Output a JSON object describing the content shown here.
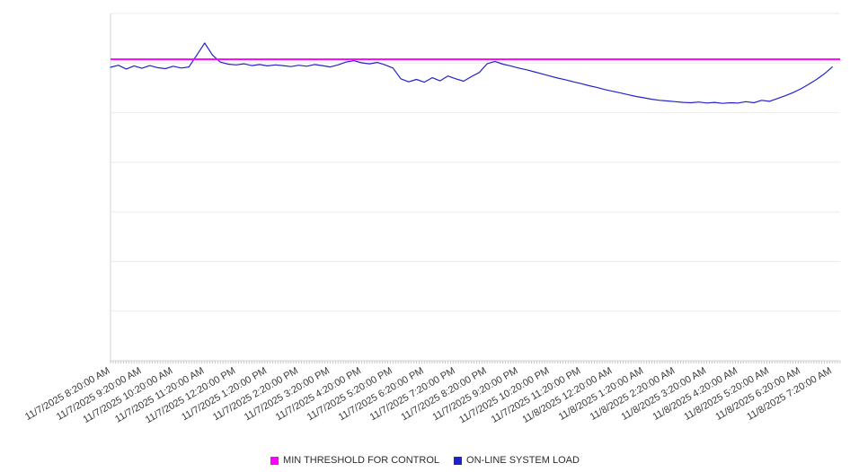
{
  "chart_data": {
    "type": "line",
    "title": "",
    "xlabel": "",
    "ylabel": "",
    "grid": true,
    "legend_position": "bottom",
    "ylim": [
      0,
      100
    ],
    "y_gridline_count": 7,
    "x_span_hours": 23.25,
    "x_step_hours": 0.25,
    "minor_tick_hours": 0.0833333,
    "colors": {
      "grid": "#ebebee",
      "axis": "#d6d6da",
      "tick": "#c4c4c8",
      "label": "#383838",
      "background": "#ffffff"
    },
    "x_tick_labels": [
      "11/7/2025 8:20:00 AM",
      "11/7/2025 9:20:00 AM",
      "11/7/2025 10:20:00 AM",
      "11/7/2025 11:20:00 AM",
      "11/7/2025 12:20:00 PM",
      "11/7/2025 1:20:00 PM",
      "11/7/2025 2:20:00 PM",
      "11/7/2025 3:20:00 PM",
      "11/7/2025 4:20:00 PM",
      "11/7/2025 5:20:00 PM",
      "11/7/2025 6:20:00 PM",
      "11/7/2025 7:20:00 PM",
      "11/7/2025 8:20:00 PM",
      "11/7/2025 9:20:00 PM",
      "11/7/2025 10:20:00 PM",
      "11/7/2025 11:20:00 PM",
      "11/8/2025 12:20:00 AM",
      "11/8/2025 1:20:00 AM",
      "11/8/2025 2:20:00 AM",
      "11/8/2025 3:20:00 AM",
      "11/8/2025 4:20:00 AM",
      "11/8/2025 5:20:00 AM",
      "11/8/2025 6:20:00 AM",
      "11/8/2025 7:20:00 AM"
    ],
    "series": [
      {
        "name": "MIN THRESHOLD FOR CONTROL",
        "type": "threshold",
        "color": "#ff00ff",
        "value": 86.8
      },
      {
        "name": "ON-LINE SYSTEM LOAD",
        "type": "line",
        "color": "#2222cc",
        "values": [
          84.5,
          85.1,
          84.0,
          84.9,
          84.2,
          85.0,
          84.4,
          84.1,
          84.8,
          84.3,
          84.6,
          88.0,
          91.5,
          88.0,
          86.0,
          85.4,
          85.2,
          85.5,
          85.0,
          85.3,
          84.9,
          85.2,
          85.0,
          84.7,
          85.1,
          84.8,
          85.3,
          85.0,
          84.6,
          85.2,
          86.0,
          86.4,
          85.8,
          85.5,
          85.9,
          85.2,
          84.3,
          81.2,
          80.3,
          81.0,
          80.2,
          81.5,
          80.6,
          82.0,
          81.2,
          80.5,
          81.8,
          83.0,
          85.5,
          86.2,
          85.4,
          84.9,
          84.3,
          83.8,
          83.2,
          82.6,
          82.0,
          81.4,
          80.9,
          80.3,
          79.8,
          79.2,
          78.7,
          78.1,
          77.6,
          77.1,
          76.6,
          76.1,
          75.7,
          75.3,
          75.0,
          74.8,
          74.6,
          74.4,
          74.3,
          74.5,
          74.2,
          74.4,
          74.1,
          74.3,
          74.2,
          74.6,
          74.3,
          75.0,
          74.7,
          75.5,
          76.3,
          77.2,
          78.3,
          79.6,
          81.0,
          82.6,
          84.6
        ]
      }
    ]
  }
}
